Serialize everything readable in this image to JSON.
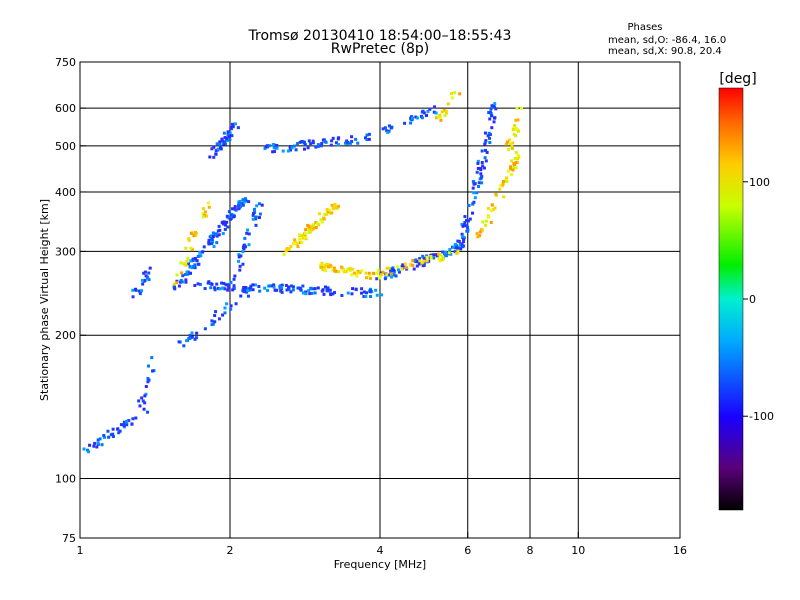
{
  "chart_data": {
    "type": "scatter",
    "title": "Tromsø 20130410 18:54:00–18:55:43",
    "subtitle": "RwPretec (8p)",
    "xlabel": "Frequency [MHz]",
    "ylabel": "Stationary phase Virtual Height [km]",
    "x_scale": "log",
    "y_scale": "log",
    "xlim": [
      1,
      16
    ],
    "ylim": [
      75,
      750
    ],
    "x_ticks": [
      1,
      2,
      4,
      6,
      8,
      10,
      16
    ],
    "x_tick_labels": [
      "1",
      "2",
      "4",
      "6",
      "8",
      "10",
      "16"
    ],
    "y_ticks": [
      75,
      100,
      200,
      300,
      400,
      500,
      600,
      750
    ],
    "y_tick_labels": [
      "75",
      "100",
      "200",
      "300",
      "400",
      "500",
      "600",
      "750"
    ],
    "grid_x": [
      2,
      4,
      6,
      8,
      10
    ],
    "grid_y": [
      100,
      200,
      300,
      400,
      500,
      600
    ],
    "phase_stats": {
      "title": "Phases",
      "line1": "mean, sd,O: -86.4, 16.0",
      "line2": "mean, sd,X:  90.8, 20.4"
    },
    "colorbar": {
      "label": "[deg]",
      "ticks": [
        100,
        0,
        -100
      ],
      "tick_labels": [
        "100",
        "0",
        "-100"
      ],
      "range": [
        -180,
        180
      ]
    },
    "series": [
      {
        "mode": "O",
        "segments": [
          {
            "x0": 1.0,
            "x1": 1.38,
            "y0": 113,
            "y1": 140,
            "count": 40
          },
          {
            "x0": 1.32,
            "x1": 1.42,
            "y0": 140,
            "y1": 180,
            "count": 15
          },
          {
            "x0": 1.28,
            "x1": 1.38,
            "y0": 240,
            "y1": 275,
            "count": 20
          },
          {
            "x0": 1.55,
            "x1": 2.15,
            "y0": 250,
            "y1": 390,
            "count": 110
          },
          {
            "x0": 1.6,
            "x1": 2.2,
            "y0": 190,
            "y1": 250,
            "count": 35
          },
          {
            "x0": 1.85,
            "x1": 2.05,
            "y0": 480,
            "y1": 550,
            "count": 40
          },
          {
            "x0": 2.3,
            "x1": 3.6,
            "y0": 490,
            "y1": 515,
            "count": 60
          },
          {
            "x0": 3.6,
            "x1": 5.2,
            "y0": 510,
            "y1": 600,
            "count": 35
          },
          {
            "x0": 1.7,
            "x1": 4.0,
            "y0": 255,
            "y1": 245,
            "count": 120
          },
          {
            "x0": 4.0,
            "x1": 6.0,
            "y0": 265,
            "y1": 310,
            "count": 80
          },
          {
            "x0": 5.8,
            "x1": 6.4,
            "y0": 310,
            "y1": 460,
            "count": 45
          },
          {
            "x0": 6.3,
            "x1": 6.8,
            "y0": 420,
            "y1": 620,
            "count": 35
          },
          {
            "x0": 2.0,
            "x1": 2.3,
            "y0": 250,
            "y1": 380,
            "count": 40
          }
        ]
      },
      {
        "mode": "X",
        "segments": [
          {
            "x0": 1.55,
            "x1": 1.8,
            "y0": 260,
            "y1": 380,
            "count": 30
          },
          {
            "x0": 2.6,
            "x1": 3.3,
            "y0": 300,
            "y1": 380,
            "count": 70
          },
          {
            "x0": 3.0,
            "x1": 4.0,
            "y0": 280,
            "y1": 265,
            "count": 50
          },
          {
            "x0": 4.0,
            "x1": 5.8,
            "y0": 270,
            "y1": 300,
            "count": 35
          },
          {
            "x0": 6.3,
            "x1": 7.6,
            "y0": 320,
            "y1": 480,
            "count": 50
          },
          {
            "x0": 7.2,
            "x1": 7.7,
            "y0": 480,
            "y1": 610,
            "count": 20
          },
          {
            "x0": 5.2,
            "x1": 5.7,
            "y0": 560,
            "y1": 640,
            "count": 15
          }
        ]
      }
    ]
  }
}
